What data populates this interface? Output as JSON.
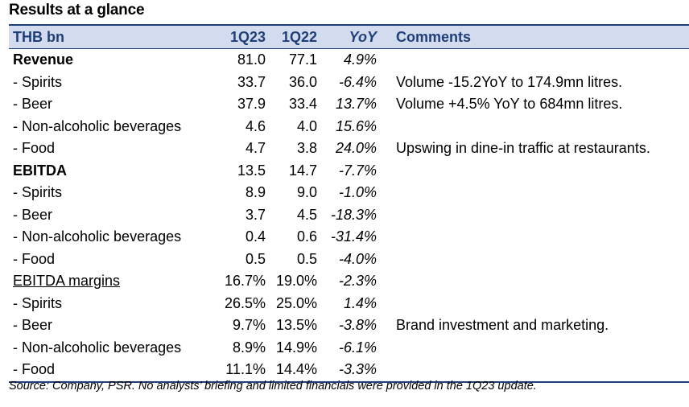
{
  "title": "Results at a glance",
  "header": {
    "label": "THB bn",
    "col1": "1Q23",
    "col2": "1Q22",
    "col3": "YoY",
    "col4": "Comments"
  },
  "rows": [
    {
      "label": "Revenue",
      "v1": "81.0",
      "v2": "77.1",
      "yoy": "4.9%",
      "comment": "",
      "style": "bold"
    },
    {
      "label": " - Spirits",
      "v1": "33.7",
      "v2": "36.0",
      "yoy": "-6.4%",
      "comment": "Volume -15.2YoY to 174.9mn litres.",
      "style": ""
    },
    {
      "label": " - Beer",
      "v1": "37.9",
      "v2": "33.4",
      "yoy": "13.7%",
      "comment": "Volume +4.5% YoY to 684mn litres.",
      "style": ""
    },
    {
      "label": " - Non-alcoholic beverages",
      "v1": "4.6",
      "v2": "4.0",
      "yoy": "15.6%",
      "comment": "",
      "style": ""
    },
    {
      "label": " - Food",
      "v1": "4.7",
      "v2": "3.8",
      "yoy": "24.0%",
      "comment": "Upswing in dine-in traffic at restaurants.",
      "style": ""
    },
    {
      "label": "EBITDA",
      "v1": "13.5",
      "v2": "14.7",
      "yoy": "-7.7%",
      "comment": "",
      "style": "bold"
    },
    {
      "label": " - Spirits",
      "v1": "8.9",
      "v2": "9.0",
      "yoy": "-1.0%",
      "comment": "",
      "style": ""
    },
    {
      "label": " - Beer",
      "v1": "3.7",
      "v2": "4.5",
      "yoy": "-18.3%",
      "comment": "",
      "style": ""
    },
    {
      "label": " - Non-alcoholic beverages",
      "v1": "0.4",
      "v2": "0.6",
      "yoy": "-31.4%",
      "comment": "",
      "style": ""
    },
    {
      "label": " - Food",
      "v1": "0.5",
      "v2": "0.5",
      "yoy": "-4.0%",
      "comment": "",
      "style": ""
    },
    {
      "label": "EBITDA margins",
      "v1": "16.7%",
      "v2": "19.0%",
      "yoy": "-2.3%",
      "comment": "",
      "style": "ul"
    },
    {
      "label": " - Spirits",
      "v1": "26.5%",
      "v2": "25.0%",
      "yoy": "1.4%",
      "comment": "",
      "style": ""
    },
    {
      "label": " - Beer",
      "v1": "9.7%",
      "v2": "13.5%",
      "yoy": "-3.8%",
      "comment": "Brand investment and marketing.",
      "style": ""
    },
    {
      "label": " - Non-alcoholic beverages",
      "v1": "8.9%",
      "v2": "14.9%",
      "yoy": "-6.1%",
      "comment": "",
      "style": ""
    },
    {
      "label": " - Food",
      "v1": "11.1%",
      "v2": "14.4%",
      "yoy": "-3.3%",
      "comment": "",
      "style": ""
    }
  ],
  "source": "Source: Company, PSR. No analysts’ briefing and limited financials were provided in the 1Q23 update.",
  "colors": {
    "header_bg": "#d2dcee",
    "header_text": "#1f3f78",
    "rule": "#1f3f78"
  }
}
